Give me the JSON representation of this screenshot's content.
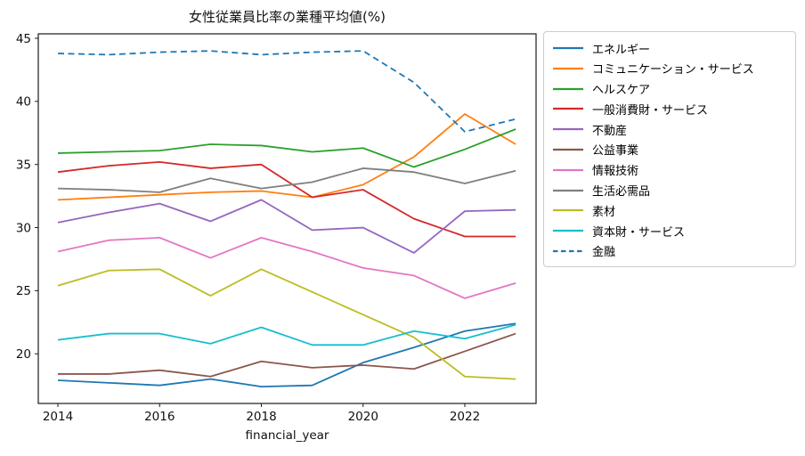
{
  "title": "女性従業員比率の業種平均値(%)",
  "chart_data": {
    "type": "line",
    "title": "女性従業員比率の業種平均値(%)",
    "xlabel": "financial_year",
    "ylabel": "",
    "x": [
      2014,
      2015,
      2016,
      2017,
      2018,
      2019,
      2020,
      2021,
      2022,
      2023
    ],
    "xticks": [
      2014,
      2016,
      2018,
      2020,
      2022
    ],
    "yticks": [
      20,
      25,
      30,
      35,
      40,
      45
    ],
    "xlim": [
      2013.6,
      2023.4
    ],
    "ylim": [
      16.1,
      45.3
    ],
    "grid": false,
    "legend_position": "outside-right",
    "axis_color": "#1a1a1a",
    "series": [
      {
        "name": "エネルギー",
        "color": "#1f77b4",
        "style": "solid",
        "values": [
          17.9,
          17.7,
          17.5,
          18.0,
          17.4,
          17.5,
          19.3,
          20.5,
          21.8,
          22.4
        ]
      },
      {
        "name": "コミュニケーション・サービス",
        "color": "#ff7f0e",
        "style": "solid",
        "values": [
          32.2,
          32.4,
          32.6,
          32.8,
          32.9,
          32.4,
          33.4,
          35.6,
          39.0,
          36.6
        ]
      },
      {
        "name": "ヘルスケア",
        "color": "#2ca02c",
        "style": "solid",
        "values": [
          35.9,
          36.0,
          36.1,
          36.6,
          36.5,
          36.0,
          36.3,
          34.8,
          36.2,
          37.8
        ]
      },
      {
        "name": "一般消費財・サービス",
        "color": "#d62728",
        "style": "solid",
        "values": [
          34.4,
          34.9,
          35.2,
          34.7,
          35.0,
          32.4,
          33.0,
          30.7,
          29.3,
          29.3
        ]
      },
      {
        "name": "不動産",
        "color": "#9467bd",
        "style": "solid",
        "values": [
          30.4,
          31.2,
          31.9,
          30.5,
          32.2,
          29.8,
          30.0,
          28.0,
          31.3,
          31.4
        ]
      },
      {
        "name": "公益事業",
        "color": "#8c564b",
        "style": "solid",
        "values": [
          18.4,
          18.4,
          18.7,
          18.2,
          19.4,
          18.9,
          19.1,
          18.8,
          20.2,
          21.6
        ]
      },
      {
        "name": "情報技術",
        "color": "#e377c2",
        "style": "solid",
        "values": [
          28.1,
          29.0,
          29.2,
          27.6,
          29.2,
          28.1,
          26.8,
          26.2,
          24.4,
          25.6
        ]
      },
      {
        "name": "生活必需品",
        "color": "#7f7f7f",
        "style": "solid",
        "values": [
          33.1,
          33.0,
          32.8,
          33.9,
          33.1,
          33.6,
          34.7,
          34.4,
          33.5,
          34.5
        ]
      },
      {
        "name": "素材",
        "color": "#bcbd22",
        "style": "solid",
        "values": [
          25.4,
          26.6,
          26.7,
          24.6,
          26.7,
          24.9,
          23.1,
          21.3,
          18.2,
          18.0
        ]
      },
      {
        "name": "資本財・サービス",
        "color": "#17becf",
        "style": "solid",
        "values": [
          21.1,
          21.6,
          21.6,
          20.8,
          22.1,
          20.7,
          20.7,
          21.8,
          21.2,
          22.3
        ]
      },
      {
        "name": "金融",
        "color": "#1f77b4",
        "style": "dashed",
        "values": [
          43.8,
          43.7,
          43.9,
          44.0,
          43.7,
          43.9,
          44.0,
          41.5,
          37.6,
          38.6
        ]
      }
    ]
  }
}
